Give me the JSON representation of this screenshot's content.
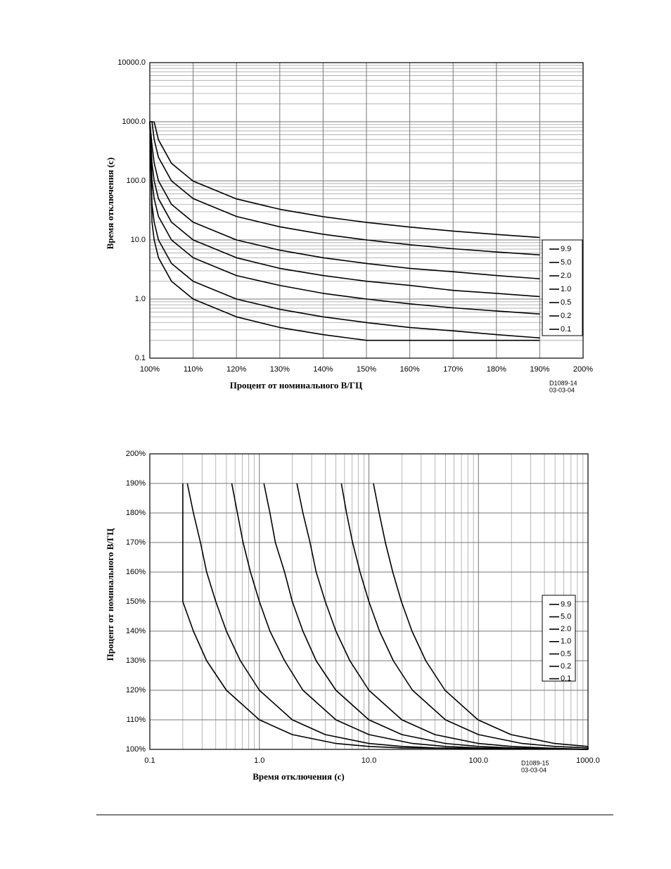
{
  "chart_data": [
    {
      "type": "line",
      "xlabel": "Процент от номинального В/ГЦ",
      "ylabel": "Время отключения (с)",
      "annotations": [
        "D1089-14",
        "03-03-04"
      ],
      "x": [
        100,
        100.5,
        101,
        102,
        105,
        110,
        120,
        130,
        140,
        150,
        160,
        170,
        180,
        190
      ],
      "xlim": [
        100,
        200
      ],
      "xticks": [
        {
          "value": 100,
          "label": "100%"
        },
        {
          "value": 110,
          "label": "110%"
        },
        {
          "value": 120,
          "label": "120%"
        },
        {
          "value": 130,
          "label": "130%"
        },
        {
          "value": 140,
          "label": "140%"
        },
        {
          "value": 150,
          "label": "150%"
        },
        {
          "value": 160,
          "label": "160%"
        },
        {
          "value": 170,
          "label": "170%"
        },
        {
          "value": 180,
          "label": "180%"
        },
        {
          "value": 190,
          "label": "190%"
        },
        {
          "value": 200,
          "label": "200%"
        }
      ],
      "ylim": [
        0.1,
        10000
      ],
      "yticks": [
        0.1,
        {
          "value": 1,
          "label": "1.0"
        },
        {
          "value": 10,
          "label": "10.0"
        },
        {
          "value": 100,
          "label": "100.0"
        },
        {
          "value": 1000,
          "label": "1000.0"
        },
        {
          "value": 10000,
          "label": "10000.0"
        }
      ],
      "yscale": "log",
      "xscale": "linear",
      "grid": true,
      "minor_grid": true,
      "legend": "right",
      "series": [
        {
          "name": "9.9",
          "color": "#000000",
          "values": [
            1000,
            1000,
            990,
            495,
            198,
            99,
            49.5,
            33,
            24.75,
            19.8,
            16.5,
            14.14,
            12.4,
            11
          ]
        },
        {
          "name": "5.0",
          "color": "#000000",
          "values": [
            1000,
            1000,
            500,
            250,
            100,
            50,
            25,
            16.7,
            12.5,
            10,
            8.3,
            7.1,
            6.25,
            5.6
          ]
        },
        {
          "name": "2.0",
          "color": "#000000",
          "values": [
            1000,
            400,
            200,
            100,
            40,
            20,
            10,
            6.7,
            5,
            4,
            3.3,
            2.9,
            2.5,
            2.2
          ]
        },
        {
          "name": "1.0",
          "color": "#000000",
          "values": [
            1000,
            200,
            100,
            50,
            20,
            10,
            5,
            3.3,
            2.5,
            2,
            1.7,
            1.4,
            1.25,
            1.1
          ]
        },
        {
          "name": "0.5",
          "color": "#000000",
          "values": [
            1000,
            100,
            50,
            25,
            10,
            5,
            2.5,
            1.7,
            1.25,
            1,
            0.83,
            0.71,
            0.63,
            0.56
          ]
        },
        {
          "name": "0.2",
          "color": "#000000",
          "values": [
            1000,
            40,
            20,
            10,
            4,
            2,
            1,
            0.67,
            0.5,
            0.4,
            0.33,
            0.29,
            0.25,
            0.22
          ]
        },
        {
          "name": "0.1",
          "color": "#000000",
          "values": [
            1000,
            20,
            10,
            5,
            2,
            1,
            0.5,
            0.33,
            0.25,
            0.2,
            0.2,
            0.2,
            0.2,
            0.2
          ]
        }
      ]
    },
    {
      "type": "line",
      "xlabel": "Время отключения (с)",
      "ylabel": "Процент от номинального В/ГЦ",
      "annotations": [
        "D1089-15",
        "03-03-04"
      ],
      "xlim": [
        0.1,
        1000
      ],
      "xticks": [
        0.1,
        {
          "value": 1,
          "label": "1.0"
        },
        {
          "value": 10,
          "label": "10.0"
        },
        {
          "value": 100,
          "label": "100.0"
        },
        {
          "value": 1000,
          "label": "1000.0"
        }
      ],
      "ylim": [
        100,
        200
      ],
      "yticks": [
        {
          "value": 100,
          "label": "100%"
        },
        {
          "value": 110,
          "label": "110%"
        },
        {
          "value": 120,
          "label": "120%"
        },
        {
          "value": 130,
          "label": "130%"
        },
        {
          "value": 140,
          "label": "140%"
        },
        {
          "value": 150,
          "label": "150%"
        },
        {
          "value": 160,
          "label": "160%"
        },
        {
          "value": 170,
          "label": "170%"
        },
        {
          "value": 180,
          "label": "180%"
        },
        {
          "value": 190,
          "label": "190%"
        },
        {
          "value": 200,
          "label": "200%"
        }
      ],
      "xscale": "log",
      "yscale": "linear",
      "grid": true,
      "minor_grid": true,
      "legend": "right",
      "series": [
        {
          "name": "9.9",
          "color": "#000000",
          "x": [
            1000,
            1000,
            990,
            495,
            198,
            99,
            49.5,
            33,
            24.75,
            19.8,
            16.5,
            14.14,
            12.4,
            11
          ],
          "values": [
            100,
            100.5,
            101,
            102,
            105,
            110,
            120,
            130,
            140,
            150,
            160,
            170,
            180,
            190
          ]
        },
        {
          "name": "5.0",
          "color": "#000000",
          "x": [
            1000,
            1000,
            500,
            250,
            100,
            50,
            25,
            16.7,
            12.5,
            10,
            8.3,
            7.1,
            6.25,
            5.6
          ],
          "values": [
            100,
            100.5,
            101,
            102,
            105,
            110,
            120,
            130,
            140,
            150,
            160,
            170,
            180,
            190
          ]
        },
        {
          "name": "2.0",
          "color": "#000000",
          "x": [
            1000,
            400,
            200,
            100,
            40,
            20,
            10,
            6.7,
            5,
            4,
            3.3,
            2.9,
            2.5,
            2.2
          ],
          "values": [
            100,
            100.5,
            101,
            102,
            105,
            110,
            120,
            130,
            140,
            150,
            160,
            170,
            180,
            190
          ]
        },
        {
          "name": "1.0",
          "color": "#000000",
          "x": [
            1000,
            200,
            100,
            50,
            20,
            10,
            5,
            3.3,
            2.5,
            2,
            1.7,
            1.4,
            1.25,
            1.1
          ],
          "values": [
            100,
            100.5,
            101,
            102,
            105,
            110,
            120,
            130,
            140,
            150,
            160,
            170,
            180,
            190
          ]
        },
        {
          "name": "0.5",
          "color": "#000000",
          "x": [
            1000,
            100,
            50,
            25,
            10,
            5,
            2.5,
            1.7,
            1.25,
            1,
            0.83,
            0.71,
            0.63,
            0.56
          ],
          "values": [
            100,
            100.5,
            101,
            102,
            105,
            110,
            120,
            130,
            140,
            150,
            160,
            170,
            180,
            190
          ]
        },
        {
          "name": "0.2",
          "color": "#000000",
          "x": [
            1000,
            40,
            20,
            10,
            4,
            2,
            1,
            0.67,
            0.5,
            0.4,
            0.33,
            0.29,
            0.25,
            0.22
          ],
          "values": [
            100,
            100.5,
            101,
            102,
            105,
            110,
            120,
            130,
            140,
            150,
            160,
            170,
            180,
            190
          ]
        },
        {
          "name": "0.1",
          "color": "#000000",
          "x": [
            1000,
            20,
            10,
            5,
            2,
            1,
            0.5,
            0.33,
            0.25,
            0.2,
            0.2,
            0.2,
            0.2,
            0.2
          ],
          "values": [
            100,
            100.5,
            101,
            102,
            105,
            110,
            120,
            130,
            140,
            150,
            160,
            170,
            180,
            190
          ]
        }
      ]
    }
  ]
}
